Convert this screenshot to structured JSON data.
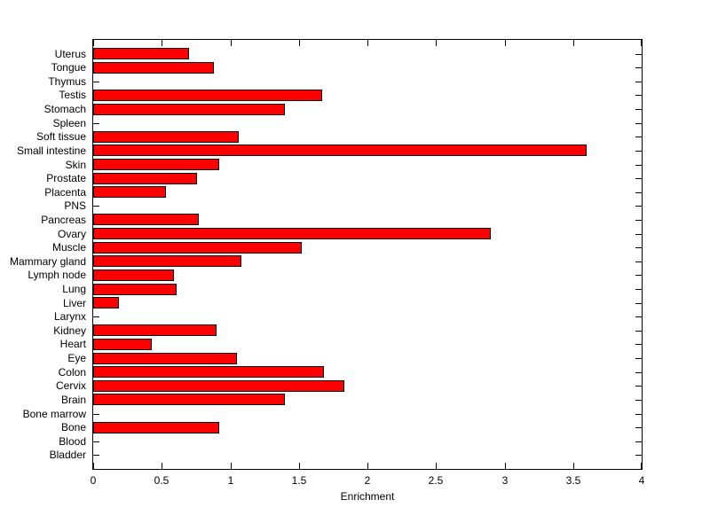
{
  "chart_data": {
    "type": "bar",
    "orientation": "horizontal",
    "title": "",
    "xlabel": "Enrichment",
    "ylabel": "",
    "xlim": [
      0,
      4
    ],
    "x_ticks": [
      0,
      0.5,
      1,
      1.5,
      2,
      2.5,
      3,
      3.5,
      4
    ],
    "x_tick_labels": [
      "0",
      "0.5",
      "1",
      "1.5",
      "2",
      "2.5",
      "3",
      "3.5",
      "4"
    ],
    "grid": false,
    "legend": "none",
    "bar_color": "#ff0000",
    "bar_edge_color": "#000000",
    "axis_color": "#000000",
    "background_color": "#ffffff",
    "categories": [
      "Uterus",
      "Tongue",
      "Thymus",
      "Testis",
      "Stomach",
      "Spleen",
      "Soft tissue",
      "Small intestine",
      "Skin",
      "Prostate",
      "Placenta",
      "PNS",
      "Pancreas",
      "Ovary",
      "Muscle",
      "Mammary gland",
      "Lymph node",
      "Lung",
      "Liver",
      "Larynx",
      "Kidney",
      "Heart",
      "Eye",
      "Colon",
      "Cervix",
      "Brain",
      "Bone marrow",
      "Bone",
      "Blood",
      "Bladder"
    ],
    "values": [
      0.7,
      0.88,
      0,
      1.67,
      1.4,
      0,
      1.06,
      3.6,
      0.92,
      0.76,
      0.53,
      0,
      0.77,
      2.9,
      1.52,
      1.08,
      0.59,
      0.61,
      0.19,
      0,
      0.9,
      0.43,
      1.05,
      1.68,
      1.83,
      1.4,
      0,
      0.92,
      0,
      0
    ]
  }
}
